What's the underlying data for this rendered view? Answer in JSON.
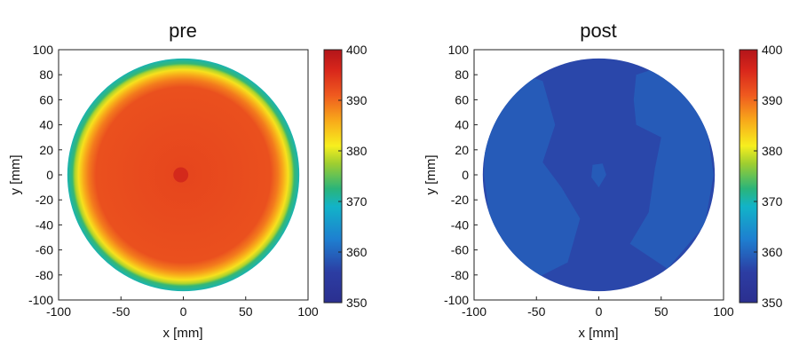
{
  "chart_data": [
    {
      "type": "heatmap",
      "title": "pre",
      "xlabel": "x [mm]",
      "ylabel": "y [mm]",
      "xlim": [
        -100,
        100
      ],
      "ylim": [
        -100,
        100
      ],
      "xticks": [
        "-100",
        "-50",
        "0",
        "50",
        "100"
      ],
      "yticks": [
        "100",
        "80",
        "60",
        "40",
        "20",
        "0",
        "-20",
        "-40",
        "-60",
        "-80",
        "-100"
      ],
      "wafer_radius": 93,
      "radial_profile": [
        [
          0,
          393
        ],
        [
          70,
          392
        ],
        [
          76,
          389
        ],
        [
          80,
          386
        ],
        [
          84,
          382
        ],
        [
          87,
          378
        ],
        [
          89,
          373
        ],
        [
          93,
          370
        ]
      ],
      "features": [
        {
          "x": -2,
          "y": 0,
          "r": 6,
          "value": 397
        }
      ],
      "colorbar": {
        "min": 350,
        "max": 400,
        "ticks": [
          "400",
          "390",
          "380",
          "370",
          "360",
          "350"
        ]
      }
    },
    {
      "type": "heatmap",
      "title": "post",
      "xlabel": "x [mm]",
      "ylabel": "y [mm]",
      "xlim": [
        -100,
        100
      ],
      "ylim": [
        -100,
        100
      ],
      "xticks": [
        "-100",
        "-50",
        "0",
        "50",
        "100"
      ],
      "yticks": [
        "100",
        "80",
        "60",
        "40",
        "20",
        "0",
        "-20",
        "-40",
        "-60",
        "-80",
        "-100"
      ],
      "wafer_radius": 93,
      "base_value": 357,
      "light_regions": [
        {
          "polygon": [
            [
              -90,
              60
            ],
            [
              -60,
              80
            ],
            [
              -45,
              75
            ],
            [
              -35,
              40
            ],
            [
              -45,
              10
            ],
            [
              -30,
              -10
            ],
            [
              -15,
              -35
            ],
            [
              -25,
              -70
            ],
            [
              -55,
              -85
            ],
            [
              -85,
              -55
            ],
            [
              -92,
              0
            ]
          ],
          "value": 359
        },
        {
          "polygon": [
            [
              30,
              80
            ],
            [
              55,
              88
            ],
            [
              85,
              50
            ],
            [
              92,
              0
            ],
            [
              85,
              -40
            ],
            [
              55,
              -75
            ],
            [
              25,
              -55
            ],
            [
              40,
              -30
            ],
            [
              45,
              5
            ],
            [
              50,
              30
            ],
            [
              30,
              40
            ],
            [
              28,
              60
            ]
          ],
          "value": 359
        },
        {
          "polygon": [
            [
              -5,
              8
            ],
            [
              3,
              9
            ],
            [
              6,
              0
            ],
            [
              0,
              -10
            ],
            [
              -6,
              -2
            ]
          ],
          "value": 359
        }
      ],
      "colorbar": {
        "min": 350,
        "max": 400,
        "ticks": [
          "400",
          "390",
          "380",
          "370",
          "360",
          "350"
        ]
      }
    }
  ]
}
